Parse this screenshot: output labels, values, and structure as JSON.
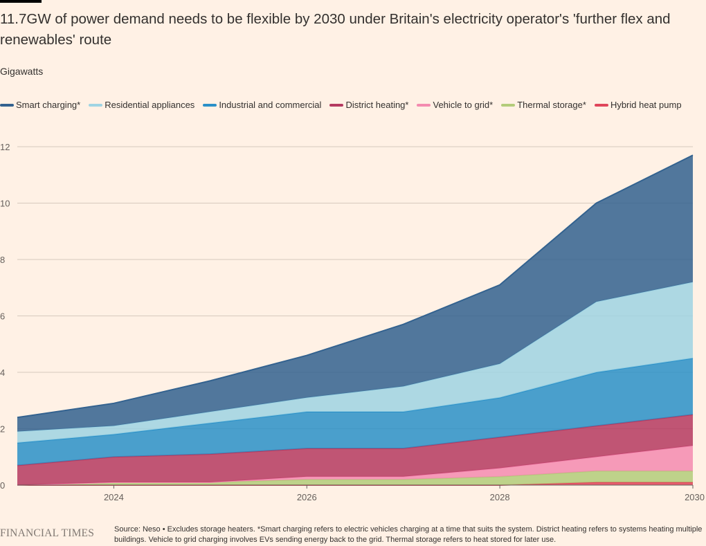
{
  "title": "11.7GW of power demand needs to be flexible by 2030 under Britain's electricity operator's 'further flex and renewables' route",
  "subtitle": "Gigawatts",
  "footer": {
    "logo": "FINANCIAL TIMES",
    "source": "Source: Neso • Excludes storage heaters. *Smart charging refers to electric vehicles charging at a time that suits the system. District heating refers to systems heating multiple buildings. Vehicle to grid charging involves EVs sending energy back to the grid. Thermal storage refers to heat stored for later use."
  },
  "chart_data": {
    "type": "area",
    "stacked": true,
    "ylabel": "Gigawatts",
    "x": [
      2023,
      2024,
      2025,
      2026,
      2027,
      2028,
      2029,
      2030
    ],
    "xticks": [
      2024,
      2026,
      2028,
      2030
    ],
    "yticks": [
      0,
      2,
      4,
      6,
      8,
      10,
      12
    ],
    "xlim": [
      2023,
      2030
    ],
    "ylim": [
      0,
      12
    ],
    "grid": true,
    "legend_position": "top-left",
    "series": [
      {
        "name": "Hybrid heat pump",
        "color": "#e0455a",
        "values": [
          0,
          0,
          0,
          0,
          0,
          0,
          0.1,
          0.1
        ]
      },
      {
        "name": "Thermal storage*",
        "color": "#b3cc7a",
        "values": [
          0,
          0.1,
          0.1,
          0.2,
          0.2,
          0.3,
          0.4,
          0.4
        ]
      },
      {
        "name": "Vehicle to grid*",
        "color": "#f48bb0",
        "values": [
          0,
          0,
          0,
          0.1,
          0.1,
          0.3,
          0.5,
          0.9
        ]
      },
      {
        "name": "District heating*",
        "color": "#b53a60",
        "values": [
          0.7,
          0.9,
          1.0,
          1.0,
          1.0,
          1.1,
          1.1,
          1.1
        ]
      },
      {
        "name": "Industrial and commercial",
        "color": "#2a90c8",
        "values": [
          0.8,
          0.8,
          1.1,
          1.3,
          1.3,
          1.4,
          1.9,
          2.0
        ]
      },
      {
        "name": "Residential appliances",
        "color": "#9fd4e3",
        "values": [
          0.4,
          0.3,
          0.4,
          0.5,
          0.9,
          1.2,
          2.5,
          2.7
        ]
      },
      {
        "name": "Smart charging*",
        "color": "#33628f",
        "values": [
          0.5,
          0.8,
          1.1,
          1.5,
          2.2,
          2.8,
          3.5,
          4.5
        ]
      }
    ],
    "legend_order": [
      "Smart charging*",
      "Residential appliances",
      "Industrial and commercial",
      "District heating*",
      "Vehicle to grid*",
      "Thermal storage*",
      "Hybrid heat pump"
    ]
  }
}
